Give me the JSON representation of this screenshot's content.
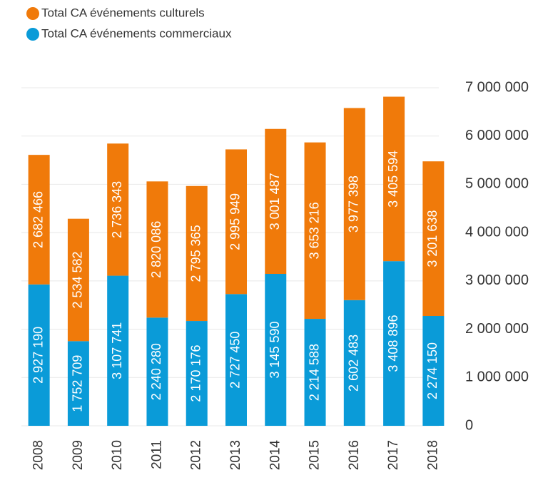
{
  "chart_data": {
    "type": "stacked_bar",
    "categories": [
      "2008",
      "2009",
      "2010",
      "2011",
      "2012",
      "2013",
      "2014",
      "2015",
      "2016",
      "2017",
      "2018"
    ],
    "series": [
      {
        "name": "Total CA événements culturels",
        "color": "#f07a0a",
        "values": [
          2682466,
          2534582,
          2736343,
          2820086,
          2795365,
          2995949,
          3001487,
          3653216,
          3977398,
          3405594,
          3201638
        ],
        "value_labels": [
          "2 682 466",
          "2 534 582",
          "2 736 343",
          "2 820 086",
          "2 795 365",
          "2 995 949",
          "3 001 487",
          "3 653 216",
          "3 977 398",
          "3 405 594",
          "3 201 638"
        ]
      },
      {
        "name": "Total CA événements commerciaux",
        "color": "#0a9bd8",
        "values": [
          2927190,
          1752709,
          3107741,
          2240280,
          2170176,
          2727450,
          3145590,
          2214588,
          2602483,
          3408896,
          2274150
        ],
        "value_labels": [
          "2 927 190",
          "1 752 709",
          "3 107 741",
          "2 240 280",
          "2 170 176",
          "2 727 450",
          "3 145 590",
          "2 214 588",
          "2 602 483",
          "3 408 896",
          "2 274 150"
        ]
      }
    ],
    "ylim": [
      0,
      7000000
    ],
    "yticks": [
      0,
      {
        "value": 1000000,
        "label": "1 000 000"
      },
      {
        "value": 2000000,
        "label": "2 000 000"
      },
      {
        "value": 3000000,
        "label": "3 000 000"
      },
      {
        "value": 4000000,
        "label": "4 000 000"
      },
      {
        "value": 5000000,
        "label": "5 000 000"
      },
      {
        "value": 6000000,
        "label": "6 000 000"
      },
      {
        "value": 7000000,
        "label": "7 000 000"
      }
    ],
    "grid": true
  }
}
